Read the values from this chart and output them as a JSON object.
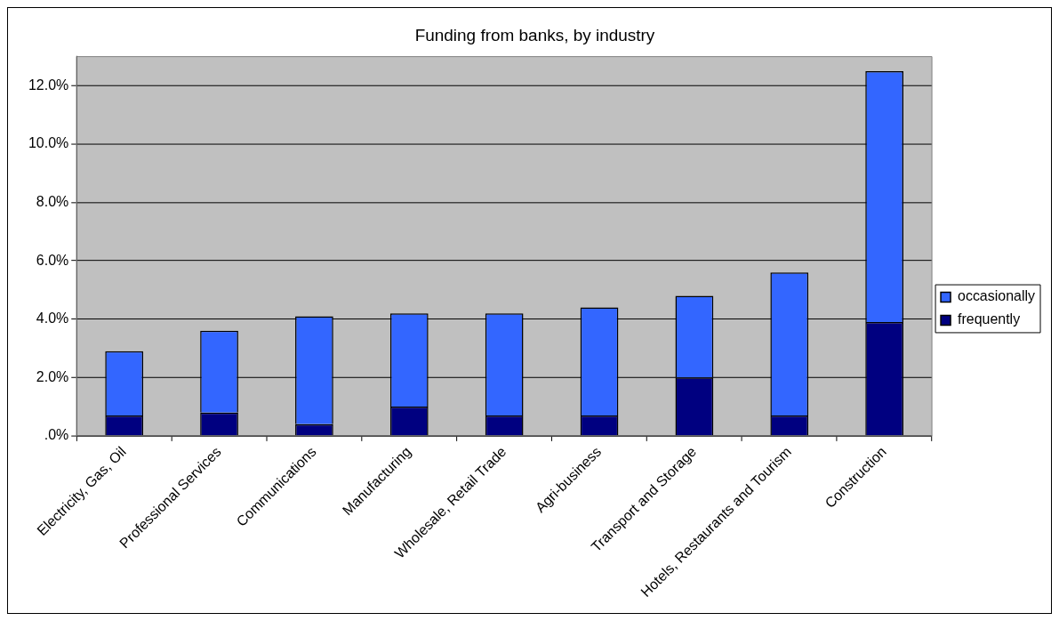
{
  "chart_data": {
    "type": "bar",
    "title": "Funding from banks, by industry",
    "categories": [
      "Electricity, Gas, Oil",
      "Professional Services",
      "Communications",
      "Manufacturing",
      "Wholesale, Retail Trade",
      "Agri-business",
      "Transport and Storage",
      "Hotels, Restaurants and Tourism",
      "Construction"
    ],
    "stacked": true,
    "series": [
      {
        "name": "frequently",
        "color": "#000080",
        "values": [
          0.7,
          0.8,
          0.4,
          1.0,
          0.7,
          0.7,
          2.0,
          0.7,
          3.9
        ]
      },
      {
        "name": "occasionally",
        "color": "#3366ff",
        "values": [
          2.2,
          2.8,
          3.7,
          3.2,
          3.5,
          3.7,
          2.8,
          4.9,
          8.6
        ]
      }
    ],
    "ylim": [
      0,
      13
    ],
    "yticks": [
      {
        "value": 0,
        "label": ".0%"
      },
      {
        "value": 2,
        "label": "2.0%"
      },
      {
        "value": 4,
        "label": "4.0%"
      },
      {
        "value": 6,
        "label": "6.0%"
      },
      {
        "value": 8,
        "label": "8.0%"
      },
      {
        "value": 10,
        "label": "10.0%"
      },
      {
        "value": 12,
        "label": "12.0%"
      }
    ],
    "grid": "y",
    "legend": "right"
  }
}
